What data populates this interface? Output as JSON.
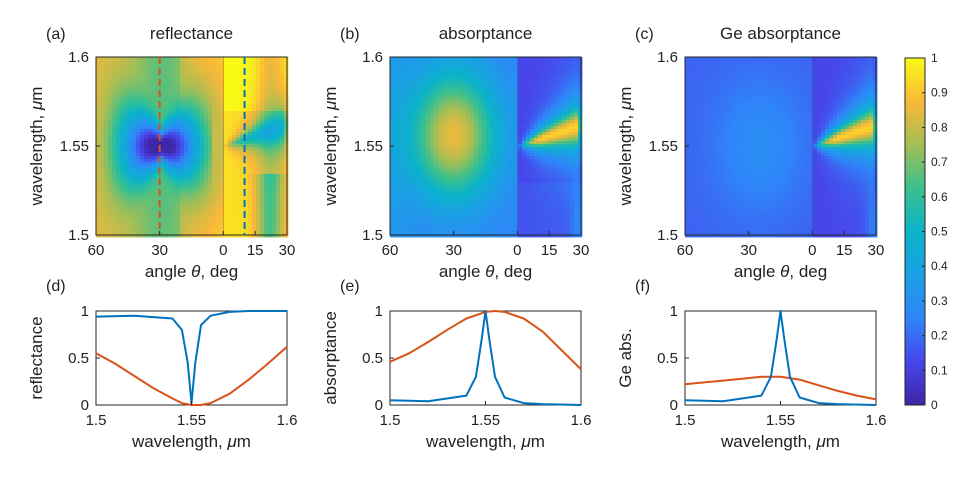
{
  "figure": {
    "colormap": "parula",
    "curve_colors": {
      "blue": "#0072BD",
      "orange": "#D95319"
    },
    "dash_colors": {
      "orange": "#D95319",
      "blue": "#0072BD"
    }
  },
  "chart_data": [
    {
      "id": "a",
      "type": "heatmap",
      "panel_label": "(a)",
      "title": "reflectance",
      "xlabel_prefix": "angle ",
      "xlabel_symbol": "θ",
      "xlabel_suffix": ", deg",
      "ylabel_prefix": "wavelength, ",
      "ylabel_symbol": "μ",
      "ylabel_suffix": "m",
      "x_ticks": [
        "60",
        "30",
        "0",
        "15",
        "30"
      ],
      "y_ticks": [
        "1.6",
        "1.55",
        "1.5"
      ],
      "left_angle_range_deg": [
        60,
        0
      ],
      "right_angle_range_deg": [
        0,
        30
      ],
      "ylim": [
        1.5,
        1.6
      ],
      "kind": "reflectance",
      "dashed_lines": [
        {
          "angle_deg": 30,
          "side": "left",
          "color": "orange"
        },
        {
          "angle_deg": 10,
          "side": "right",
          "color": "blue"
        }
      ]
    },
    {
      "id": "b",
      "type": "heatmap",
      "panel_label": "(b)",
      "title": "absorptance",
      "xlabel_prefix": "angle ",
      "xlabel_symbol": "θ",
      "xlabel_suffix": ", deg",
      "ylabel_prefix": "wavelength, ",
      "ylabel_symbol": "μ",
      "ylabel_suffix": "m",
      "x_ticks": [
        "60",
        "30",
        "0",
        "15",
        "30"
      ],
      "y_ticks": [
        "1.6",
        "1.55",
        "1.5"
      ],
      "left_angle_range_deg": [
        60,
        0
      ],
      "right_angle_range_deg": [
        0,
        30
      ],
      "ylim": [
        1.5,
        1.6
      ],
      "kind": "absorptance",
      "dashed_lines": []
    },
    {
      "id": "c",
      "type": "heatmap",
      "panel_label": "(c)",
      "title": "Ge absorptance",
      "xlabel_prefix": "angle ",
      "xlabel_symbol": "θ",
      "xlabel_suffix": ", deg",
      "ylabel_prefix": "wavelength, ",
      "ylabel_symbol": "μ",
      "ylabel_suffix": "m",
      "x_ticks": [
        "60",
        "30",
        "0",
        "15",
        "30"
      ],
      "y_ticks": [
        "1.6",
        "1.55",
        "1.5"
      ],
      "left_angle_range_deg": [
        60,
        0
      ],
      "right_angle_range_deg": [
        0,
        30
      ],
      "ylim": [
        1.5,
        1.6
      ],
      "kind": "ge",
      "dashed_lines": []
    },
    {
      "id": "d",
      "type": "line",
      "panel_label": "(d)",
      "ylabel": "reflectance",
      "xlabel_prefix": "wavelength, ",
      "xlabel_symbol": "μ",
      "xlabel_suffix": "m",
      "xlim": [
        1.5,
        1.6
      ],
      "ylim": [
        0,
        1
      ],
      "x_ticks": [
        "1.5",
        "1.55",
        "1.6"
      ],
      "y_ticks": [
        "1",
        "0.5",
        "0"
      ],
      "series": [
        {
          "name": "orange",
          "color": "orange",
          "x": [
            1.5,
            1.51,
            1.52,
            1.53,
            1.54,
            1.545,
            1.55,
            1.555,
            1.56,
            1.57,
            1.58,
            1.59,
            1.6
          ],
          "y": [
            0.55,
            0.44,
            0.31,
            0.18,
            0.07,
            0.02,
            0.0,
            0.0,
            0.02,
            0.12,
            0.27,
            0.44,
            0.62
          ]
        },
        {
          "name": "blue",
          "color": "blue",
          "x": [
            1.5,
            1.52,
            1.54,
            1.545,
            1.548,
            1.55,
            1.552,
            1.555,
            1.56,
            1.57,
            1.58,
            1.6
          ],
          "y": [
            0.94,
            0.95,
            0.92,
            0.8,
            0.45,
            0.02,
            0.45,
            0.85,
            0.95,
            0.99,
            1.0,
            1.0
          ]
        }
      ]
    },
    {
      "id": "e",
      "type": "line",
      "panel_label": "(e)",
      "ylabel": "absorptance",
      "xlabel_prefix": "wavelength, ",
      "xlabel_symbol": "μ",
      "xlabel_suffix": "m",
      "xlim": [
        1.5,
        1.6
      ],
      "ylim": [
        0,
        1
      ],
      "x_ticks": [
        "1.5",
        "1.55",
        "1.6"
      ],
      "y_ticks": [
        "1",
        "0.5",
        "0"
      ],
      "series": [
        {
          "name": "orange",
          "color": "orange",
          "x": [
            1.5,
            1.51,
            1.52,
            1.53,
            1.54,
            1.55,
            1.555,
            1.56,
            1.57,
            1.58,
            1.59,
            1.6
          ],
          "y": [
            0.46,
            0.55,
            0.67,
            0.8,
            0.92,
            0.99,
            1.0,
            0.99,
            0.92,
            0.78,
            0.58,
            0.38
          ]
        },
        {
          "name": "blue",
          "color": "blue",
          "x": [
            1.5,
            1.52,
            1.54,
            1.545,
            1.548,
            1.55,
            1.552,
            1.555,
            1.56,
            1.57,
            1.58,
            1.6
          ],
          "y": [
            0.05,
            0.04,
            0.1,
            0.3,
            0.7,
            1.0,
            0.7,
            0.3,
            0.08,
            0.02,
            0.01,
            0.0
          ]
        }
      ]
    },
    {
      "id": "f",
      "type": "line",
      "panel_label": "(f)",
      "ylabel": "Ge abs.",
      "xlabel_prefix": "wavelength, ",
      "xlabel_symbol": "μ",
      "xlabel_suffix": "m",
      "xlim": [
        1.5,
        1.6
      ],
      "ylim": [
        0,
        1
      ],
      "x_ticks": [
        "1.5",
        "1.55",
        "1.6"
      ],
      "y_ticks": [
        "1",
        "0.5",
        "0"
      ],
      "series": [
        {
          "name": "orange",
          "color": "orange",
          "x": [
            1.5,
            1.51,
            1.52,
            1.53,
            1.54,
            1.55,
            1.56,
            1.57,
            1.58,
            1.59,
            1.6
          ],
          "y": [
            0.22,
            0.24,
            0.26,
            0.28,
            0.3,
            0.3,
            0.27,
            0.21,
            0.15,
            0.1,
            0.06
          ]
        },
        {
          "name": "blue",
          "color": "blue",
          "x": [
            1.5,
            1.52,
            1.54,
            1.545,
            1.548,
            1.55,
            1.552,
            1.555,
            1.56,
            1.57,
            1.58,
            1.6
          ],
          "y": [
            0.05,
            0.04,
            0.1,
            0.3,
            0.7,
            1.0,
            0.7,
            0.3,
            0.08,
            0.02,
            0.01,
            0.0
          ]
        }
      ]
    },
    {
      "id": "colorbar",
      "type": "colorbar",
      "range": [
        0,
        1
      ],
      "ticks": [
        "1",
        "0.9",
        "0.8",
        "0.7",
        "0.6",
        "0.5",
        "0.4",
        "0.3",
        "0.2",
        "0.1",
        "0"
      ]
    }
  ]
}
